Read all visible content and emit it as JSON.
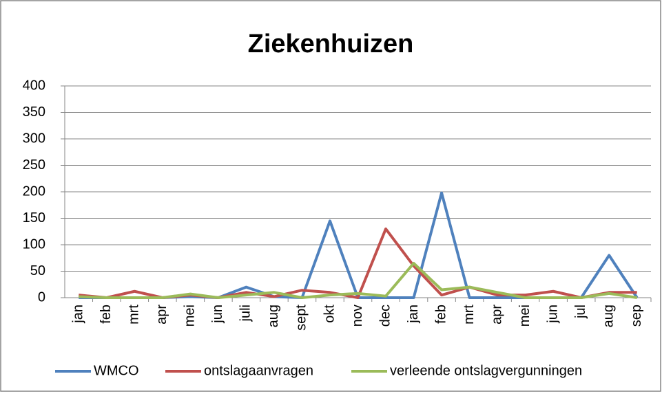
{
  "chart_data": {
    "type": "line",
    "title": "Ziekenhuizen",
    "categories": [
      "jan",
      "feb",
      "mrt",
      "apr",
      "mei",
      "jun",
      "juli",
      "aug",
      "sept",
      "okt",
      "nov",
      "dec",
      "jan",
      "feb",
      "mrt",
      "apr",
      "mei",
      "jun",
      "jul",
      "aug",
      "sep"
    ],
    "series": [
      {
        "name": "WMCO",
        "color": "#4f81bd",
        "values": [
          0,
          0,
          0,
          0,
          2,
          0,
          20,
          2,
          0,
          145,
          0,
          0,
          0,
          198,
          0,
          0,
          0,
          0,
          0,
          80,
          0
        ]
      },
      {
        "name": "ontslagaanvragen",
        "color": "#c0504d",
        "values": [
          5,
          0,
          12,
          0,
          5,
          0,
          10,
          2,
          14,
          10,
          0,
          130,
          60,
          5,
          20,
          5,
          5,
          12,
          0,
          10,
          10
        ]
      },
      {
        "name": "verleende ontslagvergunningen",
        "color": "#9bbb59",
        "values": [
          2,
          0,
          0,
          0,
          7,
          0,
          5,
          10,
          0,
          5,
          8,
          3,
          65,
          15,
          20,
          10,
          0,
          0,
          0,
          8,
          0
        ]
      }
    ],
    "ylim": [
      0,
      400
    ],
    "yticks": [
      0,
      50,
      100,
      150,
      200,
      250,
      300,
      350,
      400
    ],
    "grid": true,
    "legend": "bottom"
  }
}
